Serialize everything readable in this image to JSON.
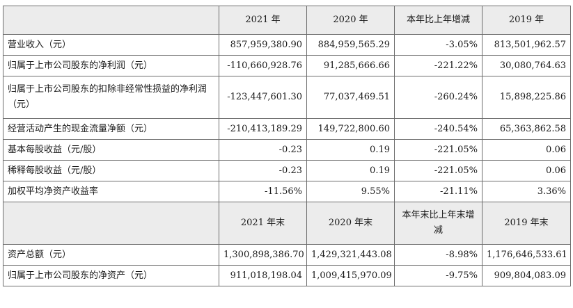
{
  "header_1": [
    "",
    "2021 年",
    "2020 年",
    "本年比上年增减",
    "2019 年"
  ],
  "rows_1": [
    {
      "label": "营业收入（元）",
      "values": [
        "857,959,380.90",
        "884,959,565.29",
        "-3.05%",
        "813,501,962.57"
      ]
    },
    {
      "label": "归属于上市公司股东的净利润（元）",
      "values": [
        "-110,660,928.76",
        "91,285,666.66",
        "-221.22%",
        "30,080,764.63"
      ]
    },
    {
      "label": "归属于上市公司股东的扣除非经常性损益的净利润（元）",
      "values": [
        "-123,447,601.30",
        "77,037,469.51",
        "-260.24%",
        "15,898,225.86"
      ]
    },
    {
      "label": "经营活动产生的现金流量净额（元）",
      "values": [
        "-210,413,189.29",
        "149,722,800.60",
        "-240.54%",
        "65,363,862.58"
      ]
    },
    {
      "label": "基本每股收益（元/股）",
      "values": [
        "-0.23",
        "0.19",
        "-221.05%",
        "0.06"
      ]
    },
    {
      "label": "稀释每股收益（元/股）",
      "values": [
        "-0.23",
        "0.19",
        "-221.05%",
        "0.06"
      ]
    },
    {
      "label": "加权平均净资产收益率",
      "values": [
        "-11.56%",
        "9.55%",
        "-21.11%",
        "3.36%"
      ]
    }
  ],
  "header_2": [
    "",
    "2021 年末",
    "2020 年末",
    "本年末比上年末增减",
    "2019 年末"
  ],
  "rows_2": [
    {
      "label": "资产总额（元）",
      "values": [
        "1,300,898,386.70",
        "1,429,321,443.08",
        "-8.98%",
        "1,176,646,533.61"
      ]
    },
    {
      "label": "归属于上市公司股东的净资产（元）",
      "values": [
        "911,018,198.04",
        "1,009,415,970.09",
        "-9.75%",
        "909,804,083.09"
      ]
    }
  ]
}
